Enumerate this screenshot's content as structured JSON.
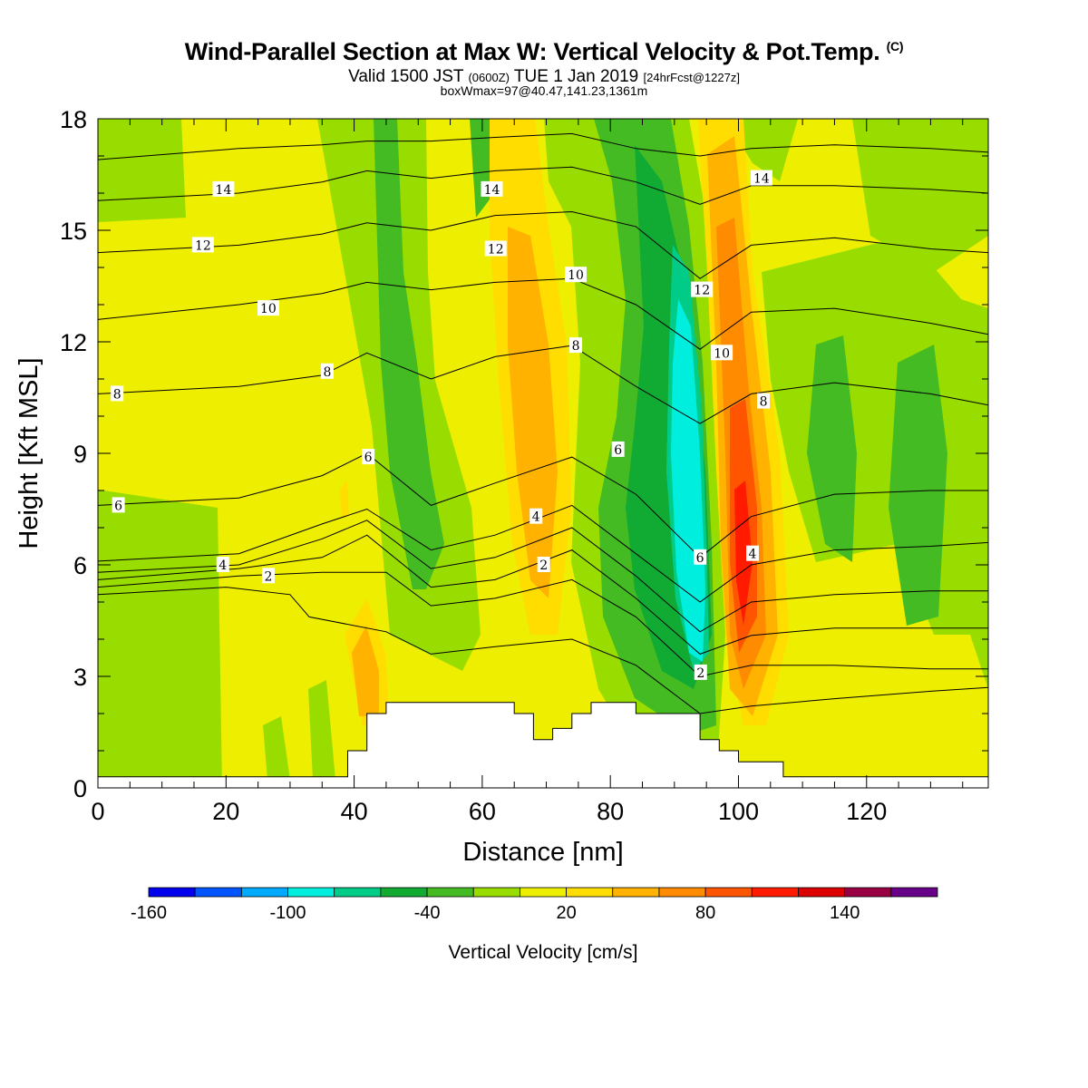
{
  "header": {
    "title": "Wind-Parallel Section at Max W: Vertical Velocity & Pot.Temp.",
    "title_mark": "(C)",
    "valid_prefix": "Valid 1500 JST",
    "valid_utc": "(0600Z)",
    "valid_date": "TUE 1 Jan 2019",
    "valid_fcst": "[24hrFcst@1227z]",
    "box_info": "boxWmax=97@40.47,141.23,1361m"
  },
  "chart_data": {
    "type": "heatmap",
    "xlabel": "Distance [nm]",
    "ylabel": "Height [Kft MSL]",
    "xlim": [
      0,
      139
    ],
    "ylim": [
      0,
      18
    ],
    "x_ticks": [
      0,
      20,
      40,
      60,
      80,
      100,
      120
    ],
    "y_ticks": [
      0,
      3,
      6,
      9,
      12,
      15,
      18
    ],
    "colorbar": {
      "title": "Vertical Velocity [cm/s]",
      "bounds": [
        -160,
        -140,
        -120,
        -100,
        -80,
        -60,
        -40,
        -20,
        0,
        20,
        40,
        60,
        80,
        100,
        120,
        140,
        160,
        180
      ],
      "tick_labels": [
        -160,
        -100,
        -40,
        20,
        80,
        140
      ],
      "colors": [
        "#0000ee",
        "#0055ff",
        "#00aaff",
        "#00eedd",
        "#00cc88",
        "#11aa33",
        "#44bb22",
        "#99dd00",
        "#eeee00",
        "#ffdd00",
        "#ffb300",
        "#ff8c00",
        "#ff5500",
        "#ff1a00",
        "#dd0000",
        "#990044",
        "#660088"
      ]
    },
    "terrain_kft": [
      [
        0,
        0.3
      ],
      [
        39,
        0.3
      ],
      [
        39,
        1.0
      ],
      [
        42,
        1.0
      ],
      [
        42,
        2.0
      ],
      [
        45,
        2.0
      ],
      [
        45,
        2.3
      ],
      [
        65,
        2.3
      ],
      [
        65,
        2.0
      ],
      [
        68,
        2.0
      ],
      [
        68,
        1.3
      ],
      [
        71,
        1.3
      ],
      [
        71,
        1.6
      ],
      [
        74,
        1.6
      ],
      [
        74,
        2.0
      ],
      [
        77,
        2.0
      ],
      [
        77,
        2.3
      ],
      [
        84,
        2.3
      ],
      [
        84,
        2.0
      ],
      [
        94,
        2.0
      ],
      [
        94,
        1.3
      ],
      [
        97,
        1.3
      ],
      [
        97,
        1.0
      ],
      [
        100,
        1.0
      ],
      [
        100,
        0.7
      ],
      [
        107,
        0.7
      ],
      [
        107,
        0.3
      ],
      [
        139,
        0.3
      ]
    ],
    "theta_contours": [
      {
        "pts": [
          [
            0,
            5.2
          ],
          [
            20,
            5.4
          ],
          [
            30,
            5.2
          ],
          [
            33,
            4.6
          ],
          [
            45,
            4.2
          ],
          [
            52,
            3.6
          ],
          [
            62,
            3.8
          ],
          [
            74,
            4.0
          ],
          [
            84,
            3.3
          ],
          [
            94,
            2.0
          ],
          [
            102,
            2.2
          ],
          [
            115,
            2.4
          ],
          [
            130,
            2.6
          ],
          [
            139,
            2.7
          ]
        ]
      },
      {
        "pts": [
          [
            0,
            5.4
          ],
          [
            22,
            5.7
          ],
          [
            35,
            5.8
          ],
          [
            45,
            5.8
          ],
          [
            52,
            4.9
          ],
          [
            62,
            5.1
          ],
          [
            74,
            5.6
          ],
          [
            84,
            4.6
          ],
          [
            94,
            3.0
          ],
          [
            102,
            3.3
          ],
          [
            115,
            3.3
          ],
          [
            130,
            3.2
          ],
          [
            139,
            3.2
          ]
        ],
        "label": "2",
        "labels_at": [
          [
            26.6,
            5.7
          ],
          [
            69.6,
            6.0
          ],
          [
            94.1,
            3.1
          ]
        ]
      },
      {
        "pts": [
          [
            0,
            5.6
          ],
          [
            22,
            5.9
          ],
          [
            35,
            6.2
          ],
          [
            42,
            6.8
          ],
          [
            52,
            5.4
          ],
          [
            62,
            5.6
          ],
          [
            74,
            6.4
          ],
          [
            84,
            5.1
          ],
          [
            94,
            3.6
          ],
          [
            102,
            4.1
          ],
          [
            115,
            4.3
          ],
          [
            130,
            4.3
          ],
          [
            139,
            4.3
          ]
        ]
      },
      {
        "pts": [
          [
            0,
            5.8
          ],
          [
            22,
            6.0
          ],
          [
            35,
            6.7
          ],
          [
            42,
            7.2
          ],
          [
            52,
            5.9
          ],
          [
            62,
            6.2
          ],
          [
            74,
            7.0
          ],
          [
            84,
            5.7
          ],
          [
            94,
            4.2
          ],
          [
            102,
            5.0
          ],
          [
            115,
            5.2
          ],
          [
            130,
            5.3
          ],
          [
            139,
            5.3
          ]
        ],
        "label": "4",
        "labels_at": [
          [
            19.5,
            6.0
          ],
          [
            68.4,
            7.3
          ],
          [
            102.2,
            6.3
          ]
        ]
      },
      {
        "pts": [
          [
            0,
            6.1
          ],
          [
            22,
            6.3
          ],
          [
            35,
            7.1
          ],
          [
            42,
            7.5
          ],
          [
            52,
            6.4
          ],
          [
            62,
            6.8
          ],
          [
            74,
            7.6
          ],
          [
            84,
            6.3
          ],
          [
            94,
            5.0
          ],
          [
            102,
            6.0
          ],
          [
            115,
            6.4
          ],
          [
            130,
            6.5
          ],
          [
            139,
            6.6
          ]
        ]
      },
      {
        "pts": [
          [
            0,
            7.6
          ],
          [
            22,
            7.8
          ],
          [
            35,
            8.4
          ],
          [
            42,
            9.0
          ],
          [
            52,
            7.6
          ],
          [
            62,
            8.2
          ],
          [
            74,
            8.9
          ],
          [
            84,
            7.9
          ],
          [
            94,
            6.2
          ],
          [
            102,
            7.3
          ],
          [
            115,
            7.9
          ],
          [
            130,
            8.0
          ],
          [
            139,
            8.0
          ]
        ],
        "label": "6",
        "labels_at": [
          [
            3.2,
            7.6
          ],
          [
            42.2,
            8.9
          ],
          [
            81.2,
            9.1
          ],
          [
            94.0,
            6.2
          ]
        ]
      },
      {
        "pts": [
          [
            0,
            10.6
          ],
          [
            22,
            10.8
          ],
          [
            35,
            11.1
          ],
          [
            42,
            11.7
          ],
          [
            52,
            11.0
          ],
          [
            62,
            11.6
          ],
          [
            74,
            11.9
          ],
          [
            84,
            10.8
          ],
          [
            94,
            9.8
          ],
          [
            102,
            10.6
          ],
          [
            115,
            10.9
          ],
          [
            130,
            10.6
          ],
          [
            139,
            10.3
          ]
        ],
        "label": "8",
        "labels_at": [
          [
            3.0,
            10.6
          ],
          [
            35.8,
            11.2
          ],
          [
            74.6,
            11.9
          ],
          [
            103.9,
            10.4
          ]
        ]
      },
      {
        "pts": [
          [
            0,
            12.6
          ],
          [
            22,
            13.0
          ],
          [
            35,
            13.3
          ],
          [
            42,
            13.6
          ],
          [
            52,
            13.4
          ],
          [
            62,
            13.6
          ],
          [
            74,
            13.7
          ],
          [
            84,
            13.0
          ],
          [
            94,
            11.8
          ],
          [
            102,
            12.8
          ],
          [
            115,
            12.9
          ],
          [
            130,
            12.5
          ],
          [
            139,
            12.2
          ]
        ],
        "label": "10",
        "labels_at": [
          [
            26.6,
            12.9
          ],
          [
            74.6,
            13.8
          ],
          [
            97.4,
            11.7
          ]
        ]
      },
      {
        "pts": [
          [
            0,
            14.4
          ],
          [
            22,
            14.6
          ],
          [
            35,
            14.9
          ],
          [
            42,
            15.2
          ],
          [
            52,
            15.0
          ],
          [
            62,
            15.4
          ],
          [
            74,
            15.5
          ],
          [
            84,
            15.1
          ],
          [
            94,
            13.7
          ],
          [
            102,
            14.6
          ],
          [
            115,
            14.8
          ],
          [
            130,
            14.5
          ],
          [
            139,
            14.4
          ]
        ],
        "label": "12",
        "labels_at": [
          [
            16.4,
            14.6
          ],
          [
            62.1,
            14.5
          ],
          [
            94.3,
            13.4
          ]
        ]
      },
      {
        "pts": [
          [
            0,
            15.8
          ],
          [
            22,
            16.0
          ],
          [
            35,
            16.3
          ],
          [
            42,
            16.6
          ],
          [
            52,
            16.4
          ],
          [
            62,
            16.6
          ],
          [
            74,
            16.7
          ],
          [
            84,
            16.3
          ],
          [
            94,
            15.7
          ],
          [
            102,
            16.2
          ],
          [
            115,
            16.2
          ],
          [
            130,
            16.1
          ],
          [
            139,
            16.0
          ]
        ],
        "label": "14",
        "labels_at": [
          [
            19.6,
            16.1
          ],
          [
            61.5,
            16.1
          ],
          [
            103.6,
            16.4
          ]
        ]
      },
      {
        "pts": [
          [
            0,
            16.9
          ],
          [
            22,
            17.2
          ],
          [
            35,
            17.3
          ],
          [
            42,
            17.4
          ],
          [
            52,
            17.4
          ],
          [
            62,
            17.5
          ],
          [
            74,
            17.6
          ],
          [
            84,
            17.2
          ],
          [
            94,
            17.0
          ],
          [
            102,
            17.2
          ],
          [
            115,
            17.3
          ],
          [
            130,
            17.2
          ],
          [
            139,
            17.1
          ]
        ]
      }
    ]
  }
}
